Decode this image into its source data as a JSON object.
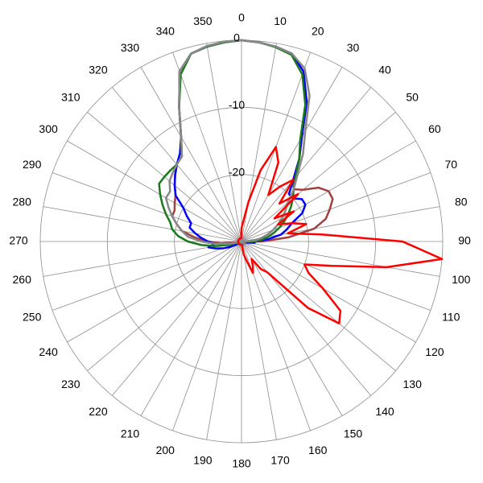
{
  "chart_data": {
    "type": "polar",
    "theta": [
      0,
      5,
      10,
      15,
      20,
      25,
      30,
      35,
      40,
      45,
      50,
      55,
      60,
      65,
      70,
      75,
      80,
      85,
      90,
      95,
      100,
      105,
      110,
      115,
      120,
      125,
      130,
      135,
      140,
      145,
      150,
      155,
      160,
      165,
      170,
      175,
      180,
      185,
      190,
      195,
      200,
      205,
      210,
      215,
      220,
      225,
      230,
      235,
      240,
      245,
      250,
      255,
      260,
      265,
      270,
      275,
      280,
      285,
      290,
      295,
      300,
      305,
      310,
      315,
      320,
      325,
      330,
      335,
      340,
      345,
      350,
      355
    ],
    "rlim": [
      -30,
      0
    ],
    "rticks": [
      -20,
      -10,
      0
    ],
    "thetaticks": [
      0,
      10,
      20,
      30,
      40,
      50,
      60,
      70,
      80,
      90,
      100,
      110,
      120,
      130,
      140,
      150,
      160,
      170,
      180,
      190,
      200,
      210,
      220,
      230,
      240,
      250,
      260,
      270,
      280,
      290,
      300,
      310,
      320,
      330,
      340,
      350
    ],
    "grid": true,
    "series": [
      {
        "color": "#a0403f",
        "values": [
          0,
          -0.2,
          -0.5,
          -1,
          -3,
          -7,
          -12,
          -15,
          -18,
          -19,
          -18,
          -16,
          -15,
          -15,
          -16,
          -17,
          -19,
          -23,
          -27,
          -29.5,
          -29.5,
          -29.5,
          -29.5,
          -29.5,
          -29.5,
          -29.5,
          -29.5,
          -29.5,
          -29.5,
          -29.5,
          -29.5,
          -29.5,
          -29.5,
          -29.5,
          -29.5,
          -29.5,
          -29.5,
          -29.5,
          -29.5,
          -29.5,
          -29.5,
          -29.5,
          -29.5,
          -29.5,
          -29.5,
          -29.5,
          -29.5,
          -29.5,
          -29.5,
          -29.5,
          -29.5,
          -29.5,
          -29.5,
          -27,
          -25,
          -23,
          -21,
          -20,
          -19,
          -19,
          -18.5,
          -18,
          -17,
          -16,
          -15,
          -14.5,
          -12,
          -8,
          -3,
          -1,
          -0.4,
          -0.1
        ]
      },
      {
        "color": "#0000ff",
        "values": [
          0,
          -0.2,
          -0.5,
          -1,
          -3,
          -7,
          -12,
          -15,
          -18,
          -20,
          -20,
          -19,
          -19,
          -20,
          -22,
          -23,
          -24,
          -26,
          -28,
          -28,
          -29,
          -29.5,
          -29.5,
          -29.5,
          -29.5,
          -29.5,
          -29.5,
          -29.5,
          -29.5,
          -29.5,
          -29.5,
          -29.5,
          -29.5,
          -29.5,
          -29.5,
          -29.5,
          -29.5,
          -29.5,
          -29.5,
          -29.5,
          -29.5,
          -29.5,
          -29.5,
          -29.5,
          -29.5,
          -29.5,
          -29.5,
          -29.5,
          -29,
          -28,
          -27,
          -26,
          -25,
          -26,
          -25,
          -24,
          -23,
          -22,
          -22,
          -21,
          -20,
          -18,
          -17,
          -16,
          -15,
          -14,
          -12,
          -8,
          -3,
          -1,
          -0.5,
          -0.2
        ]
      },
      {
        "color": "#1a7a1a",
        "values": [
          0,
          -0.2,
          -0.6,
          -1.2,
          -3.5,
          -7.5,
          -12.5,
          -15,
          -17.5,
          -19,
          -20,
          -21,
          -22,
          -23,
          -24,
          -25,
          -26,
          -27,
          -28,
          -29.5,
          -29.5,
          -29.5,
          -29.5,
          -29.5,
          -29.5,
          -29.5,
          -29.5,
          -29.5,
          -29.5,
          -29.5,
          -29.5,
          -29.5,
          -29.5,
          -29.5,
          -29.5,
          -29.5,
          -29.5,
          -29.5,
          -29.5,
          -29.5,
          -29.5,
          -29.5,
          -29.5,
          -29.5,
          -29.5,
          -29.5,
          -29.5,
          -29.5,
          -29.5,
          -29.5,
          -29.5,
          -28,
          -26,
          -24,
          -22,
          -20.5,
          -19.5,
          -19,
          -18,
          -17,
          -16,
          -15,
          -15,
          -15,
          -15,
          -14.5,
          -12,
          -8,
          -3.5,
          -1,
          -0.5,
          -0.2
        ]
      },
      {
        "color": "#888888",
        "values": [
          0,
          -0.2,
          -0.5,
          -1,
          -2.5,
          -6,
          -11,
          -14,
          -17,
          -19,
          -21,
          -22,
          -23,
          -24,
          -25,
          -26,
          -27,
          -28,
          -29.5,
          -29.5,
          -29.5,
          -29.5,
          -29.5,
          -29.5,
          -29.5,
          -29.5,
          -29.5,
          -29.5,
          -29.5,
          -29.5,
          -29.5,
          -29.5,
          -29.5,
          -29.5,
          -29.5,
          -29.5,
          -29.5,
          -29.5,
          -29.5,
          -29.5,
          -29.5,
          -29.5,
          -29.5,
          -29.5,
          -29.5,
          -29.5,
          -29.5,
          -29.5,
          -29.5,
          -29.5,
          -29.5,
          -29.5,
          -28,
          -26,
          -24,
          -22,
          -21,
          -20,
          -19,
          -18,
          -17,
          -17,
          -16,
          -15.5,
          -15,
          -14.5,
          -12,
          -8,
          -3,
          -1,
          -0.4,
          -0.1
        ]
      },
      {
        "color": "#ff0000",
        "values": [
          -28,
          -27,
          -24,
          -19,
          -15,
          -17,
          -22,
          -20,
          -18,
          -22,
          -19,
          -24,
          -21,
          -24,
          -22,
          -20,
          -23,
          -18,
          -6,
          0,
          -8,
          -16,
          -20,
          -19,
          -16,
          -12,
          -11,
          -16,
          -24,
          -25,
          -27,
          -26,
          -25,
          -27,
          -28,
          -29.5,
          -29.5,
          -29.5,
          -29.5,
          -29.5,
          -29.5,
          -29.5,
          -29.5,
          -29.5,
          -29.5,
          -29.5,
          -29.5,
          -29.5,
          -29.5,
          -29.5,
          -29.5,
          -29.5,
          -29.5,
          -29.5,
          -29.5,
          -29.5,
          -29.5,
          -29.5,
          -29.5,
          -29.5,
          -29.5,
          -29.5,
          -29.5,
          -29.5,
          -29.5,
          -29.5,
          -29.5,
          -29.5,
          -29.5,
          -29.5,
          -29.5,
          -29.5
        ]
      }
    ]
  }
}
